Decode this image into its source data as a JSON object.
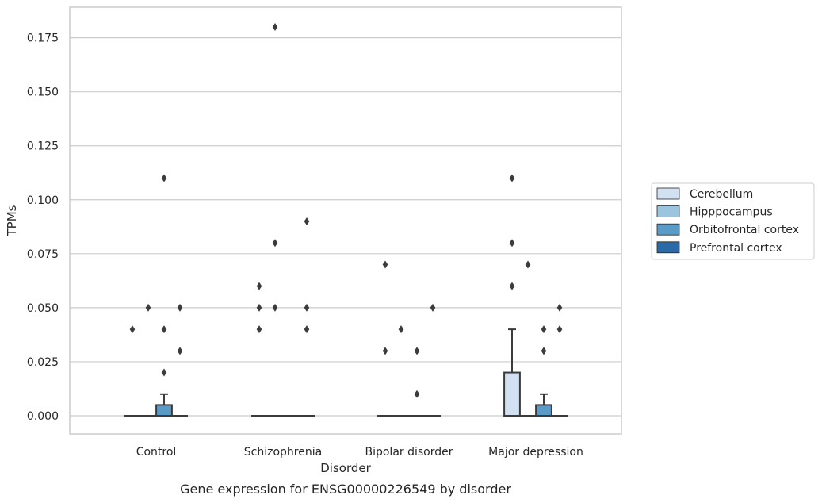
{
  "chart_data": {
    "type": "box",
    "caption": "Gene expression for ENSG00000226549 by disorder",
    "xlabel": "Disorder",
    "ylabel": "TPMs",
    "ylim": [
      -0.0175,
      0.1885
    ],
    "yticks": [
      "0.000",
      "0.025",
      "0.050",
      "0.075",
      "0.100",
      "0.125",
      "0.150",
      "0.175"
    ],
    "ytick_values": [
      0,
      0.025,
      0.05,
      0.075,
      0.1,
      0.125,
      0.15,
      0.175
    ],
    "categories": [
      "Control",
      "Schizophrenia",
      "Bipolar disorder",
      "Major depression"
    ],
    "grid": true,
    "legend_position": "right",
    "series": [
      {
        "name": "Cerebellum",
        "color": "#d2e1f1",
        "boxes": [
          {
            "q1": 0,
            "median": 0,
            "q3": 0,
            "whisker_low": 0,
            "whisker_high": 0,
            "outliers": [
              0.04
            ]
          },
          {
            "q1": 0,
            "median": 0,
            "q3": 0,
            "whisker_low": 0,
            "whisker_high": 0,
            "outliers": [
              0.04,
              0.05,
              0.06
            ]
          },
          {
            "q1": 0,
            "median": 0,
            "q3": 0,
            "whisker_low": 0,
            "whisker_high": 0,
            "outliers": [
              0.03,
              0.07
            ]
          },
          {
            "q1": 0,
            "median": 0,
            "q3": 0.02,
            "whisker_low": 0,
            "whisker_high": 0.04,
            "outliers": [
              0.06,
              0.08,
              0.11
            ]
          }
        ]
      },
      {
        "name": "Hipppocampus",
        "color": "#9bc4de",
        "boxes": [
          {
            "q1": 0,
            "median": 0,
            "q3": 0,
            "whisker_low": 0,
            "whisker_high": 0,
            "outliers": [
              0.05
            ]
          },
          {
            "q1": 0,
            "median": 0,
            "q3": 0,
            "whisker_low": 0,
            "whisker_high": 0,
            "outliers": [
              0.05,
              0.08,
              0.18
            ]
          },
          {
            "q1": 0,
            "median": 0,
            "q3": 0,
            "whisker_low": 0,
            "whisker_high": 0,
            "outliers": [
              0.04
            ]
          },
          {
            "q1": 0,
            "median": 0,
            "q3": 0,
            "whisker_low": 0,
            "whisker_high": 0,
            "outliers": [
              0.07
            ]
          }
        ]
      },
      {
        "name": "Orbitofrontal cortex",
        "color": "#5a9ac7",
        "boxes": [
          {
            "q1": 0,
            "median": 0,
            "q3": 0.005,
            "whisker_low": 0,
            "whisker_high": 0.01,
            "outliers": [
              0.02,
              0.04,
              0.11
            ]
          },
          {
            "q1": 0,
            "median": 0,
            "q3": 0,
            "whisker_low": 0,
            "whisker_high": 0,
            "outliers": []
          },
          {
            "q1": 0,
            "median": 0,
            "q3": 0,
            "whisker_low": 0,
            "whisker_high": 0,
            "outliers": [
              0.01,
              0.03
            ]
          },
          {
            "q1": 0,
            "median": 0,
            "q3": 0.005,
            "whisker_low": 0,
            "whisker_high": 0.01,
            "outliers": [
              0.03,
              0.04
            ]
          }
        ]
      },
      {
        "name": "Prefrontal cortex",
        "color": "#2a6aa8",
        "boxes": [
          {
            "q1": 0,
            "median": 0,
            "q3": 0,
            "whisker_low": 0,
            "whisker_high": 0,
            "outliers": [
              0.03,
              0.05
            ]
          },
          {
            "q1": 0,
            "median": 0,
            "q3": 0,
            "whisker_low": 0,
            "whisker_high": 0,
            "outliers": [
              0.04,
              0.05,
              0.09
            ]
          },
          {
            "q1": 0,
            "median": 0,
            "q3": 0,
            "whisker_low": 0,
            "whisker_high": 0,
            "outliers": [
              0.05
            ]
          },
          {
            "q1": 0,
            "median": 0,
            "q3": 0,
            "whisker_low": 0,
            "whisker_high": 0,
            "outliers": [
              0.04,
              0.05
            ]
          }
        ]
      }
    ]
  }
}
